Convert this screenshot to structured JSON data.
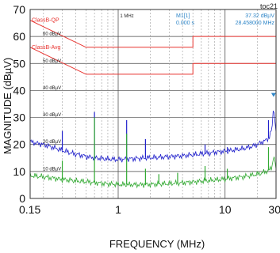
{
  "chart_data": {
    "type": "line",
    "label": "toc21",
    "xlabel": "FREQUENCY (MHz)",
    "ylabel": "MAGNITUDE (dBµV)",
    "xscale": "log",
    "xlim": [
      0.15,
      30
    ],
    "ylim": [
      0,
      70
    ],
    "x_ticks": [
      {
        "v": 0.15,
        "label": "0.15"
      },
      {
        "v": 1,
        "label": "1"
      },
      {
        "v": 10,
        "label": "10"
      },
      {
        "v": 30,
        "label": "30"
      }
    ],
    "y_ticks": [
      0,
      10,
      20,
      30,
      40,
      50,
      60,
      70
    ],
    "inner_y_labels": [
      {
        "v": 60,
        "label": "60 dBµV"
      },
      {
        "v": 50,
        "label": "50 dBµV"
      },
      {
        "v": 40,
        "label": "40 dBµV"
      },
      {
        "v": 30,
        "label": "30 dBµV"
      },
      {
        "v": 20,
        "label": "20 dBµV"
      },
      {
        "v": 10,
        "label": "10 dBµV"
      }
    ],
    "top_freq_label": "1 MHz",
    "marker": {
      "name": "M1[1]",
      "level": "37.32 dBµV",
      "time": "0.000 s",
      "freq": "28.458000 MHz"
    },
    "limits": [
      {
        "name": "ClassB-QP",
        "color": "#e8322e",
        "x": [
          0.15,
          0.5,
          0.5,
          5,
          5,
          30
        ],
        "y": [
          66,
          56,
          56,
          56,
          60,
          60
        ]
      },
      {
        "name": "ClassB-Avg",
        "color": "#e8322e",
        "x": [
          0.15,
          0.5,
          0.5,
          5,
          5,
          30
        ],
        "y": [
          56,
          46,
          46,
          46,
          50,
          50
        ]
      }
    ],
    "series": [
      {
        "color": "#2222cc",
        "x": [
          0.15,
          0.17,
          0.2,
          0.23,
          0.26,
          0.3,
          0.35,
          0.4,
          0.45,
          0.5,
          0.56,
          0.6,
          0.62,
          0.7,
          0.8,
          0.9,
          1.0,
          1.1,
          1.2,
          1.5,
          2,
          2.5,
          3,
          4,
          5,
          6,
          7,
          8,
          10,
          12,
          15,
          18,
          20,
          22,
          24,
          25,
          26,
          27,
          28,
          28.46,
          29,
          29.5,
          30
        ],
        "y": [
          21,
          20.5,
          20,
          19.2,
          18.6,
          17.8,
          17,
          16.4,
          16,
          15.6,
          15.2,
          15.2,
          15,
          14.8,
          14.6,
          14.5,
          14.4,
          14.5,
          14.6,
          14.8,
          15.1,
          15.3,
          15.5,
          15.8,
          16.2,
          16.5,
          16.8,
          17.1,
          17.5,
          17.9,
          18.5,
          19.3,
          20,
          20.8,
          21.5,
          22,
          23,
          24.5,
          28,
          37.32,
          30,
          27,
          25
        ]
      },
      {
        "color": "#33aa33",
        "x": [
          0.15,
          0.2,
          0.25,
          0.3,
          0.35,
          0.4,
          0.5,
          0.6,
          0.7,
          0.8,
          1.0,
          1.2,
          1.5,
          2,
          3,
          4,
          5,
          6,
          8,
          10,
          12,
          15,
          18,
          20,
          22,
          24,
          25,
          26,
          27,
          28,
          28.46,
          29,
          30
        ],
        "y": [
          8.5,
          8,
          7.5,
          7,
          6.8,
          6.5,
          6.2,
          5.9,
          5.6,
          5.4,
          5.2,
          5.1,
          5.1,
          5.2,
          5.5,
          5.8,
          6.1,
          6.4,
          6.8,
          7.2,
          7.6,
          8.1,
          8.6,
          9,
          9.4,
          9.9,
          10.2,
          10.6,
          11.2,
          13,
          17,
          14,
          11
        ]
      }
    ],
    "spikes": [
      {
        "series": 0,
        "x": 0.3,
        "y": 25
      },
      {
        "series": 0,
        "x": 0.6,
        "y": 32
      },
      {
        "series": 0,
        "x": 1.2,
        "y": 29
      },
      {
        "series": 0,
        "x": 1.8,
        "y": 22
      },
      {
        "series": 0,
        "x": 6.5,
        "y": 20
      },
      {
        "series": 0,
        "x": 10.5,
        "y": 19
      },
      {
        "series": 0,
        "x": 25.5,
        "y": 29
      },
      {
        "series": 1,
        "x": 0.3,
        "y": 14
      },
      {
        "series": 1,
        "x": 0.6,
        "y": 30
      },
      {
        "series": 1,
        "x": 1.2,
        "y": 24
      },
      {
        "series": 1,
        "x": 1.8,
        "y": 11
      },
      {
        "series": 1,
        "x": 2.4,
        "y": 9
      },
      {
        "series": 1,
        "x": 3.6,
        "y": 9.5
      },
      {
        "series": 1,
        "x": 6.5,
        "y": 12
      },
      {
        "series": 1,
        "x": 10.5,
        "y": 11
      },
      {
        "series": 1,
        "x": 25.5,
        "y": 19
      }
    ]
  }
}
